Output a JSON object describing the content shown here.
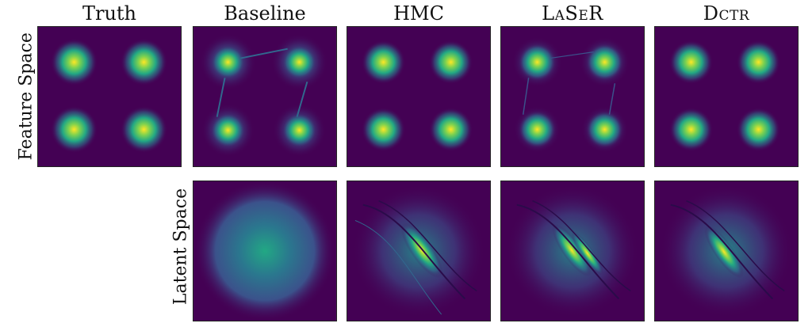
{
  "columns": [
    {
      "key": "truth",
      "title": "Truth"
    },
    {
      "key": "baseline",
      "title": "Baseline"
    },
    {
      "key": "hmc",
      "title": "HMC"
    },
    {
      "key": "laser",
      "title": "LaSeR"
    },
    {
      "key": "dctr",
      "title": "Dctr"
    }
  ],
  "rows": {
    "feature": {
      "label": "Feature Space"
    },
    "latent": {
      "label": "Latent Space"
    }
  },
  "colors": {
    "background": "#440154",
    "mid": "#21918c",
    "high": "#5ec962",
    "peak": "#fde725"
  }
}
